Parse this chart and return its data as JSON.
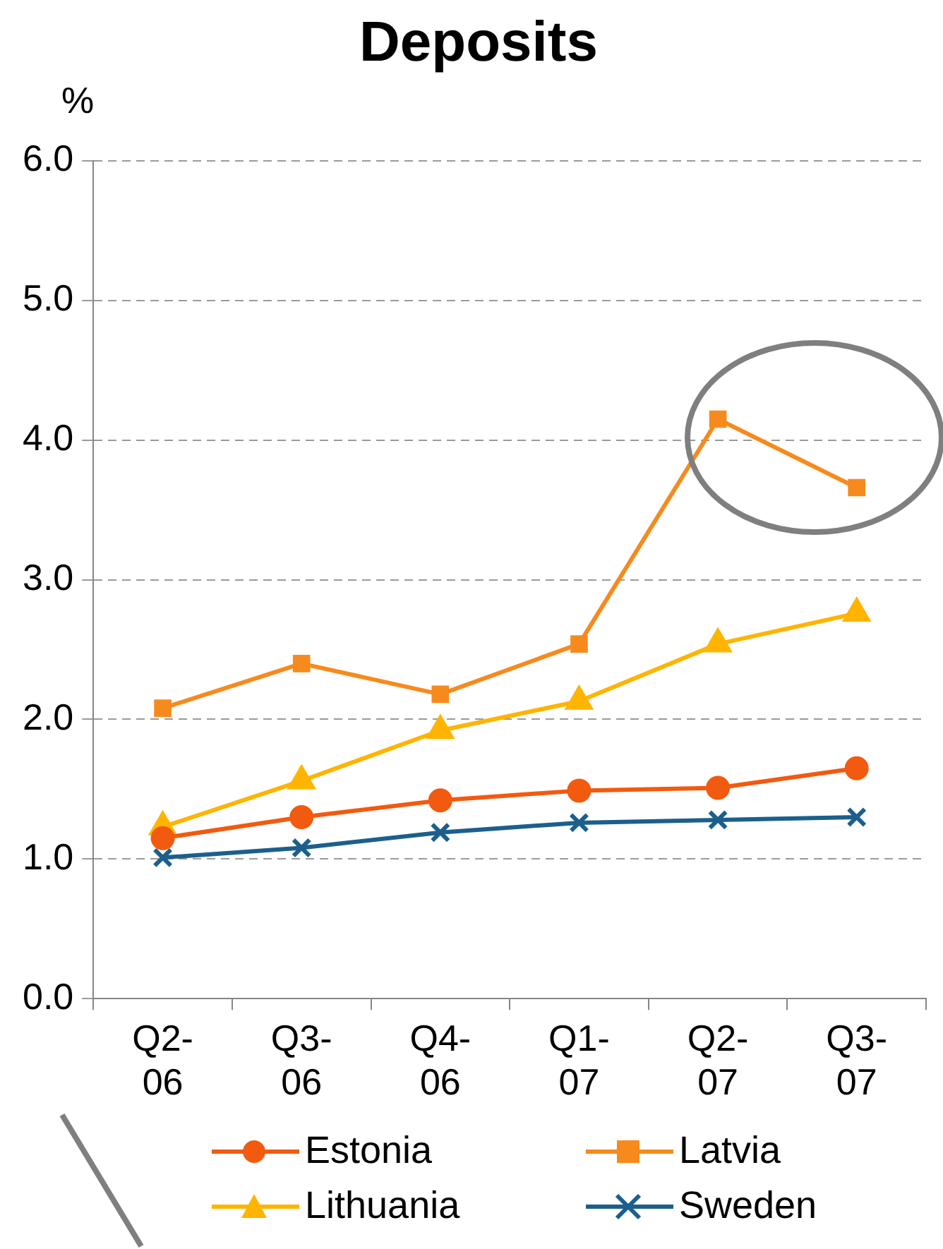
{
  "chart_data": {
    "type": "line",
    "title": "Deposits",
    "ylabel": "%",
    "categories": [
      "Q2-06",
      "Q3-06",
      "Q4-06",
      "Q1-07",
      "Q2-07",
      "Q3-07"
    ],
    "series": [
      {
        "name": "Estonia",
        "color": "#f25a0f",
        "marker": "circle",
        "values": [
          1.15,
          1.3,
          1.42,
          1.49,
          1.51,
          1.65
        ]
      },
      {
        "name": "Latvia",
        "color": "#f78a1d",
        "marker": "square",
        "values": [
          2.08,
          2.4,
          2.18,
          2.54,
          4.15,
          3.66
        ]
      },
      {
        "name": "Lithuania",
        "color": "#ffb400",
        "marker": "triangle",
        "values": [
          1.23,
          1.56,
          1.92,
          2.13,
          2.54,
          2.76
        ]
      },
      {
        "name": "Sweden",
        "color": "#1c5f8c",
        "marker": "cross",
        "values": [
          1.01,
          1.08,
          1.19,
          1.26,
          1.28,
          1.3
        ]
      }
    ],
    "ylim": [
      0,
      6
    ],
    "yticks": [
      {
        "value": 0,
        "label": "0.0"
      },
      {
        "value": 1,
        "label": "1.0"
      },
      {
        "value": 2,
        "label": "2.0"
      },
      {
        "value": 3,
        "label": "3.0"
      },
      {
        "value": 4,
        "label": "4.0"
      },
      {
        "value": 5,
        "label": "5.0"
      },
      {
        "value": 6,
        "label": "6.0"
      }
    ],
    "grid": "y",
    "legend": "bottom",
    "line_style": "solid"
  }
}
